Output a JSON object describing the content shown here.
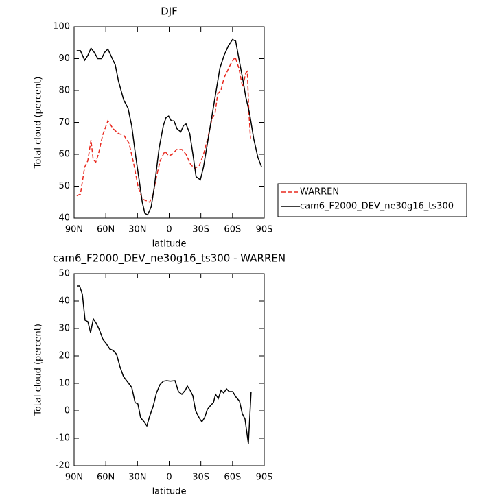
{
  "chart_data": [
    {
      "type": "line",
      "title": "DJF",
      "x_label": "latitude",
      "y_label": "Total cloud (percent)",
      "xlim": [
        90,
        -90
      ],
      "xticks": [
        {
          "value": 90,
          "label": "90N"
        },
        {
          "value": 60,
          "label": "60N"
        },
        {
          "value": 30,
          "label": "30N"
        },
        0,
        {
          "value": -30,
          "label": "30S"
        },
        {
          "value": -60,
          "label": "60S"
        },
        {
          "value": -90,
          "label": "90S"
        }
      ],
      "ylim": [
        40,
        100
      ],
      "yticks": [
        40,
        50,
        60,
        70,
        80,
        90,
        100
      ],
      "legend": "outside-right",
      "series": [
        {
          "name": "WARREN",
          "color": "#e8281e",
          "dash": true,
          "x": [
            87.5,
            84,
            80,
            77,
            74,
            72,
            69.5,
            67,
            63,
            58,
            53,
            48,
            43,
            38,
            33.5,
            29.5,
            25.5,
            22,
            18.5,
            15.5,
            12,
            8.5,
            4,
            0.5,
            -3,
            -7,
            -12,
            -16,
            -20,
            -24,
            -28.5,
            -32.5,
            -36.5,
            -40.5,
            -43.5,
            -46,
            -49,
            -52,
            -55,
            -58.5,
            -62.5,
            -66,
            -69.5,
            -72.5,
            -74,
            -75.5,
            -77
          ],
          "values": [
            47,
            47.5,
            56,
            58,
            64.5,
            58.5,
            57.5,
            60,
            66,
            70.5,
            68,
            66.5,
            66,
            63.5,
            57,
            50,
            46,
            45.5,
            45,
            47,
            53,
            58,
            61,
            59.5,
            60,
            61.5,
            61.5,
            60,
            57,
            55.5,
            56.5,
            60,
            65,
            71,
            73,
            79,
            80,
            84,
            86,
            88.5,
            90.5,
            87,
            81,
            85.5,
            86,
            73,
            65
          ]
        },
        {
          "name": "cam6_F2000_DEV_ne30g16_ts300",
          "color": "#000000",
          "dash": false,
          "x": [
            87.5,
            84,
            80,
            77,
            74,
            71,
            67.5,
            64,
            61,
            58,
            54.5,
            51,
            48,
            43,
            39,
            35.5,
            31.5,
            28,
            25.5,
            23,
            20.5,
            17,
            14,
            9.5,
            5.5,
            3,
            0.5,
            -2,
            -4.5,
            -7.5,
            -11,
            -13.5,
            -16,
            -19.5,
            -22.5,
            -25.5,
            -29.5,
            -32.5,
            -36.5,
            -40.5,
            -44.5,
            -48,
            -52,
            -56,
            -60,
            -63,
            -66,
            -70,
            -72.5,
            -76,
            -80,
            -84,
            -87.5
          ],
          "values": [
            92.5,
            92.5,
            89.5,
            91,
            93.3,
            92,
            90,
            90,
            92,
            93,
            90.5,
            88,
            83,
            77,
            74.5,
            69,
            59,
            51,
            45,
            41.5,
            41,
            43.5,
            50,
            62,
            69,
            71.5,
            72,
            70.5,
            70.5,
            68,
            67,
            69,
            69.5,
            66.5,
            60,
            53,
            52,
            56,
            64,
            72,
            80,
            87,
            91,
            94,
            96,
            95.5,
            90,
            83,
            78,
            73,
            65,
            59,
            56
          ]
        }
      ]
    },
    {
      "type": "line",
      "title": "cam6_F2000_DEV_ne30g16_ts300 - WARREN",
      "x_label": "latitude",
      "y_label": "Total cloud (percent)",
      "xlim": [
        90,
        -90
      ],
      "xticks": [
        {
          "value": 90,
          "label": "90N"
        },
        {
          "value": 60,
          "label": "60N"
        },
        {
          "value": 30,
          "label": "30N"
        },
        0,
        {
          "value": -30,
          "label": "30S"
        },
        {
          "value": -60,
          "label": "60S"
        },
        {
          "value": -90,
          "label": "90S"
        }
      ],
      "ylim": [
        -20,
        50
      ],
      "yticks": [
        -20,
        -10,
        0,
        10,
        20,
        30,
        40,
        50
      ],
      "series": [
        {
          "color": "#000000",
          "dash": false,
          "x": [
            87.4,
            84.8,
            82.2,
            79.6,
            77,
            74.4,
            71.8,
            69.2,
            66,
            62.7,
            59.5,
            56.2,
            53,
            49.7,
            46.5,
            43.3,
            39.3,
            35.4,
            32.2,
            29.6,
            27,
            23.7,
            21.1,
            18.5,
            15.3,
            12,
            8.8,
            5.5,
            2.3,
            -1,
            -5.5,
            -8.8,
            -12,
            -15.3,
            -17.2,
            -19.8,
            -22.4,
            -25,
            -28.3,
            -30.9,
            -33.5,
            -36.1,
            -39.3,
            -41.9,
            -43.9,
            -46.5,
            -49.1,
            -51.6,
            -54.3,
            -56.8,
            -60.1,
            -63.3,
            -66.6,
            -69.2,
            -71.8,
            -75,
            -77.6
          ],
          "values": [
            45.5,
            45.5,
            42.5,
            33,
            32.5,
            28.5,
            33.5,
            32,
            29.5,
            26,
            24.5,
            22.5,
            22,
            20.5,
            16,
            12.5,
            10.5,
            8.5,
            3,
            2.5,
            -2.5,
            -4,
            -5.5,
            -2,
            1.5,
            6.5,
            9.5,
            10.8,
            11,
            10.8,
            11,
            7,
            6,
            7.5,
            9,
            7.5,
            5.5,
            0,
            -2.5,
            -4,
            -2.5,
            0.5,
            2,
            3,
            6,
            4.5,
            7.5,
            6.5,
            8,
            7,
            7,
            5,
            3.5,
            -1,
            -3,
            -12,
            7
          ]
        }
      ]
    }
  ]
}
